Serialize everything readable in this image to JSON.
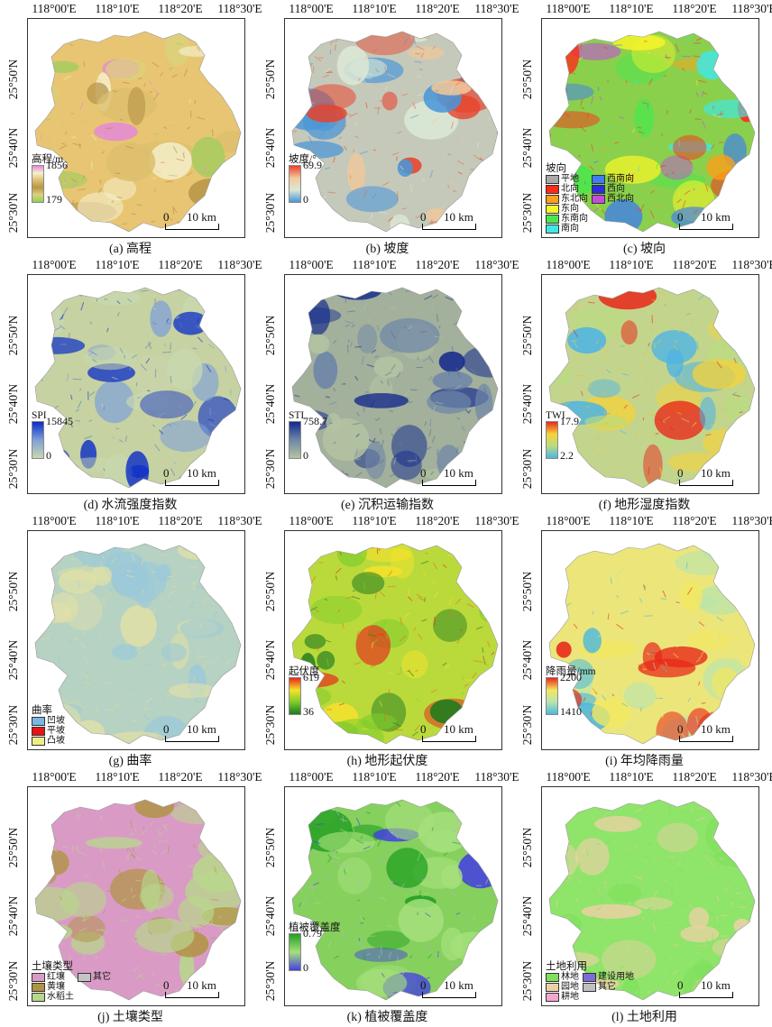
{
  "top_ticks": [
    "118°00'E",
    "118°10'E",
    "118°20'E",
    "118°30'E"
  ],
  "left_ticks": [
    "25°50'N",
    "25°40'N",
    "25°30'N"
  ],
  "scale": {
    "zero": "0",
    "distance": "10 km"
  },
  "panels": [
    {
      "id": "a",
      "caption": "(a) 高程",
      "legend_type": "gradient",
      "legend_title": "高程/m",
      "max": "1856",
      "min": "179",
      "colors": [
        "#e38ad6",
        "#f5f0d0",
        "#dcbf6e",
        "#b8974a",
        "#dcd27c",
        "#8fd05a"
      ],
      "base": "#e8c572",
      "texture": "#b48a46"
    },
    {
      "id": "b",
      "caption": "(b) 坡度",
      "legend_type": "gradient",
      "legend_title": "坡度/°",
      "max": "69.9",
      "min": "0",
      "colors": [
        "#e8422c",
        "#f2c89a",
        "#dce8d6",
        "#4a96d8"
      ],
      "base": "#c5c9ba",
      "texture": "#d8764e"
    },
    {
      "id": "c",
      "caption": "(c) 坡向",
      "legend_type": "categorical",
      "legend_title": "坡向",
      "items": [
        {
          "label": "平地",
          "color": "#a9a9a9"
        },
        {
          "label": "北向",
          "color": "#ff2a1a"
        },
        {
          "label": "东北向",
          "color": "#ff9f1a"
        },
        {
          "label": "东向",
          "color": "#f5f52a"
        },
        {
          "label": "东南向",
          "color": "#4ce64c"
        },
        {
          "label": "南向",
          "color": "#3ee8e8"
        },
        {
          "label": "西南向",
          "color": "#3f7df0"
        },
        {
          "label": "西向",
          "color": "#2d2ddf"
        },
        {
          "label": "西北向",
          "color": "#c74ae0"
        }
      ],
      "colors": [
        "#ff2a1a",
        "#ff9f1a",
        "#f5f52a",
        "#4ce64c",
        "#3ee8e8",
        "#3f7df0",
        "#c74ae0"
      ],
      "base": "#8ad04c",
      "texture": "#ff3a2a"
    },
    {
      "id": "d",
      "caption": "(d) 水流强度指数",
      "legend_type": "gradient",
      "legend_title": "SPI",
      "max": "15845",
      "min": "0",
      "colors": [
        "#0a2cc8",
        "#7fa0d8",
        "#c9d8b0"
      ],
      "base": "#c6d2a2",
      "texture": "#5a7fb8"
    },
    {
      "id": "e",
      "caption": "(e) 沉积运输指数",
      "legend_type": "gradient",
      "legend_title": "STI",
      "max": "758.7",
      "min": "0",
      "colors": [
        "#142a8c",
        "#6e86a8",
        "#b4c4a2"
      ],
      "base": "#a2b09c",
      "texture": "#5e6f8e"
    },
    {
      "id": "f",
      "caption": "(f) 地形湿度指数",
      "legend_type": "gradient",
      "legend_title": "TWI",
      "max": "17.9",
      "min": "2.2",
      "colors": [
        "#e82a1c",
        "#f5d23a",
        "#b9db82",
        "#4fb4e4"
      ],
      "base": "#c3d58c",
      "texture": "#e3c146"
    },
    {
      "id": "g",
      "caption": "(g) 曲率",
      "legend_type": "categorical",
      "legend_title": "曲率",
      "items": [
        {
          "label": "凹坡",
          "color": "#78b6e6"
        },
        {
          "label": "平坡",
          "color": "#e81414"
        },
        {
          "label": "凸坡",
          "color": "#eeee88"
        }
      ],
      "colors": [
        "#9cc9d8",
        "#dfe0a8"
      ],
      "base": "#b6d2c2",
      "texture": "#e0dc9a"
    },
    {
      "id": "h",
      "caption": "(h) 地形起伏度",
      "legend_type": "gradient",
      "legend_title": "起伏度",
      "max": "619",
      "min": "36",
      "colors": [
        "#e8281a",
        "#f4e22c",
        "#7dcc2c",
        "#1e7a1e"
      ],
      "base": "#bada3c",
      "texture": "#e86a1a"
    },
    {
      "id": "i",
      "caption": "(i) 年均降雨量",
      "legend_type": "gradient",
      "legend_title": "降雨量/mm",
      "max": "2200",
      "min": "1410",
      "colors": [
        "#e8281a",
        "#f2e860",
        "#b8e4b0",
        "#4ab8e0"
      ],
      "base": "#ece67a",
      "texture": "#ece67a"
    },
    {
      "id": "j",
      "caption": "(j) 土壤类型",
      "legend_type": "categorical",
      "legend_title": "土壤类型",
      "items": [
        {
          "label": "红壤",
          "color": "#d99bc6"
        },
        {
          "label": "黄壤",
          "color": "#b09444"
        },
        {
          "label": "水稻土",
          "color": "#b8d68c"
        },
        {
          "label": "其它",
          "color": "#c4c4c4"
        }
      ],
      "colors": [
        "#b09444",
        "#b8d68c"
      ],
      "base": "#d99bc6",
      "texture": "#b8d68c"
    },
    {
      "id": "k",
      "caption": "(k) 植被覆盖度",
      "legend_type": "gradient",
      "legend_title": "植被覆盖度",
      "max": "0.79",
      "min": "0",
      "colors": [
        "#22a022",
        "#a6e07c",
        "#4440e0"
      ],
      "base": "#86d05e",
      "texture": "#b4b4c8"
    },
    {
      "id": "l",
      "caption": "(l) 土地利用",
      "legend_type": "categorical",
      "legend_title": "土地利用",
      "items": [
        {
          "label": "林地",
          "color": "#7ee05c"
        },
        {
          "label": "园地",
          "color": "#ead2a4"
        },
        {
          "label": "耕地",
          "color": "#f4a6d0"
        },
        {
          "label": "建设用地",
          "color": "#7f6bd8"
        },
        {
          "label": "其它",
          "color": "#c0c0c0"
        }
      ],
      "colors": [
        "#7ee05c",
        "#ead2a4"
      ],
      "base": "#8fe46a",
      "texture": "#dcc9a6"
    }
  ]
}
